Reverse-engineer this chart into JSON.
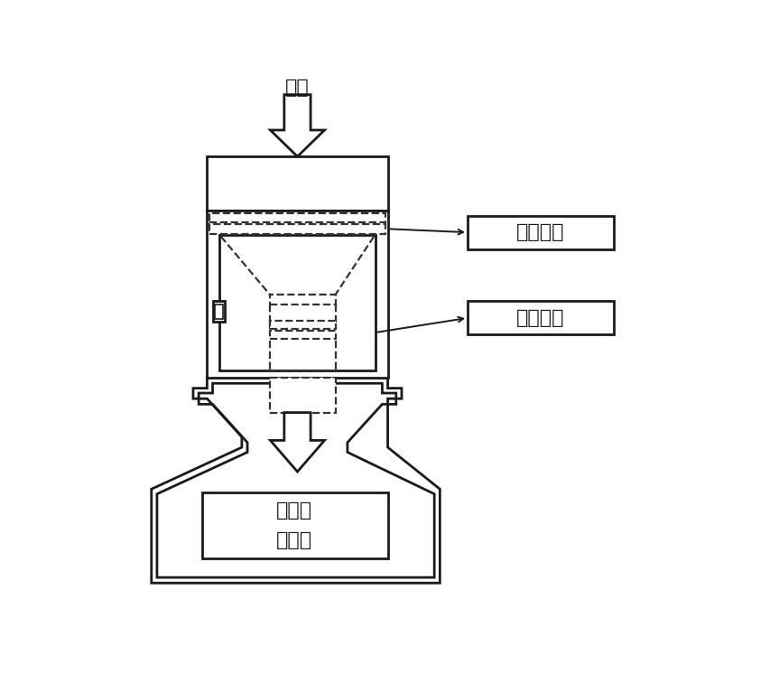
{
  "background_color": "#ffffff",
  "line_color": "#1a1a1a",
  "dashed_color": "#333333",
  "text_color": "#1a1a1a",
  "label_filter": "过滤材料",
  "label_absorb": "吸附材料",
  "label_air": "空气",
  "label_flowmeter_line1": "流量计",
  "label_flowmeter_line2": "采样泵",
  "font_size_chinese": 16,
  "lw_main": 2.0,
  "lw_dash": 1.6,
  "lw_arrow_line": 1.4
}
